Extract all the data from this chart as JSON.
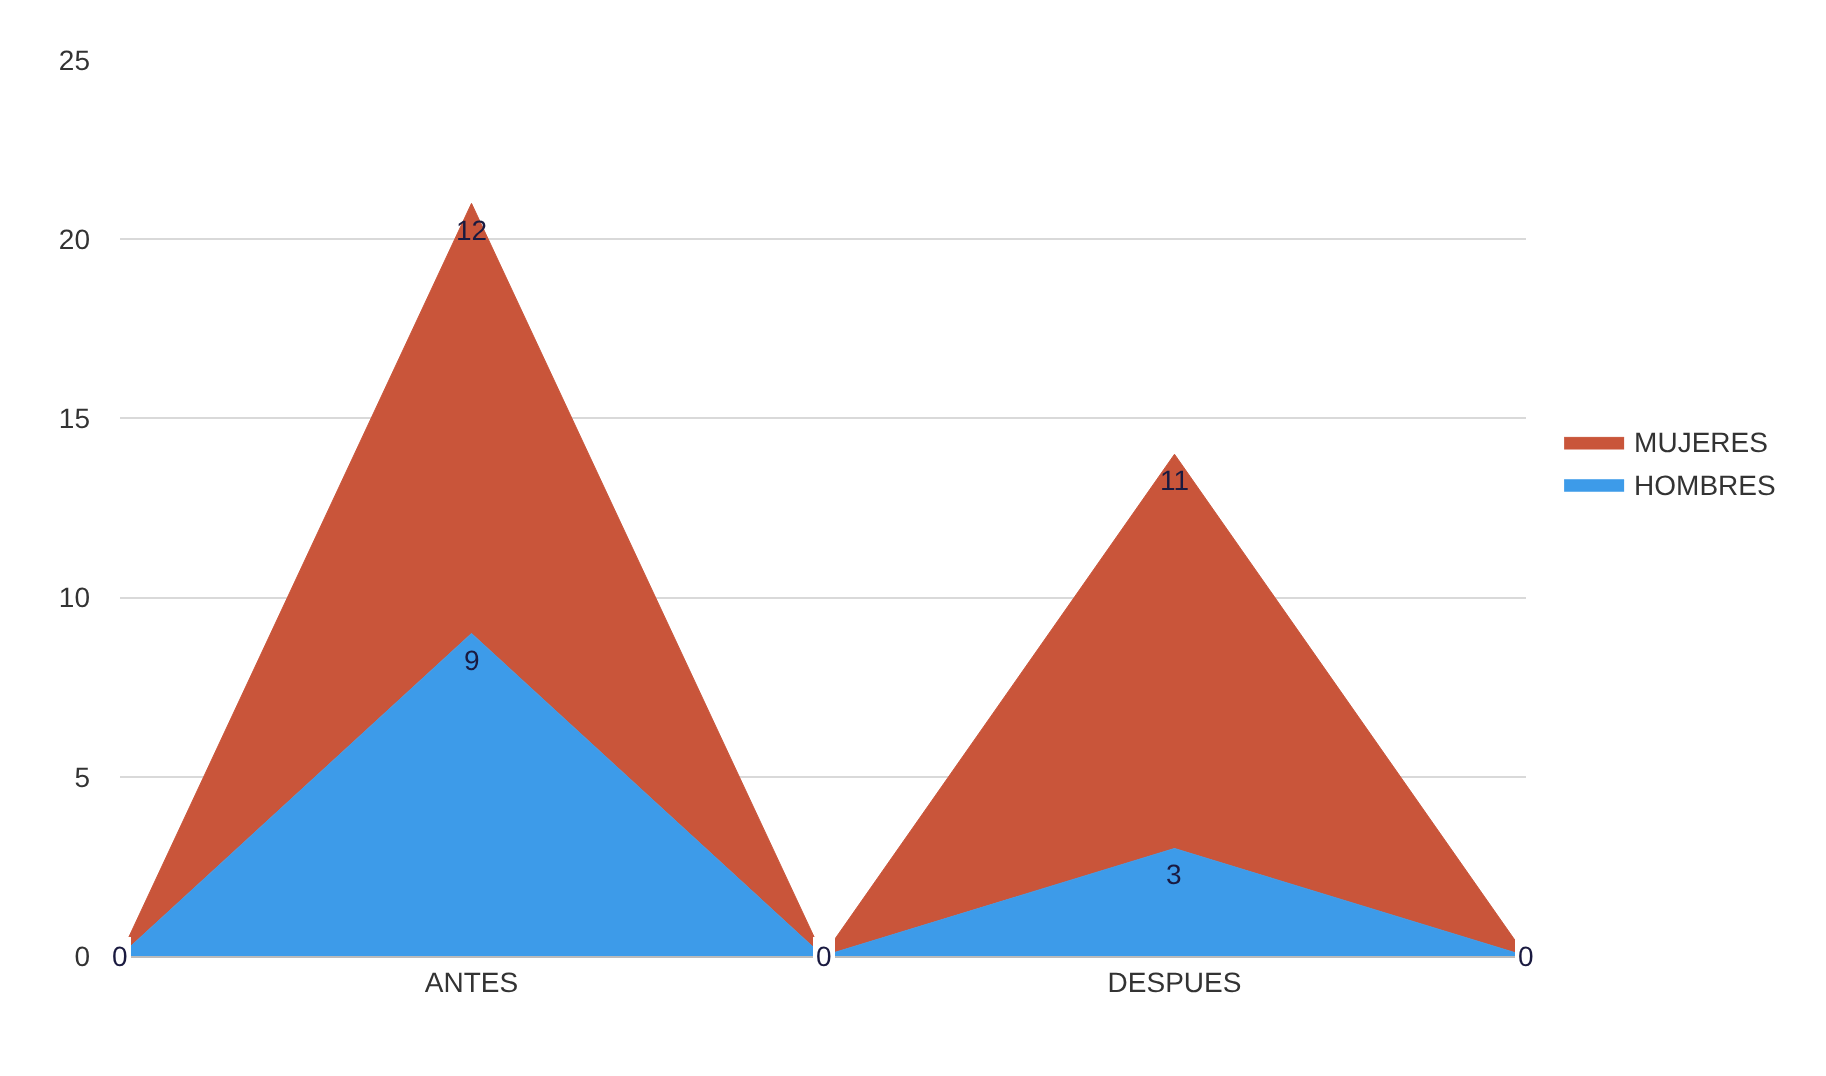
{
  "chart_data": {
    "type": "area",
    "stacked": true,
    "categories": [
      null,
      "ANTES",
      null,
      "DESPUES",
      null
    ],
    "series": [
      {
        "name": "HOMBRES",
        "color": "#3d9be9",
        "values": [
          0,
          9,
          0,
          3,
          0
        ],
        "value_labels": [
          "0",
          "9",
          "0",
          "3",
          "0"
        ]
      },
      {
        "name": "MUJERES",
        "color": "#c9553a",
        "values": [
          0,
          12,
          0,
          11,
          0
        ],
        "value_labels": [
          null,
          "12",
          null,
          "11",
          null
        ]
      }
    ],
    "ylim": [
      0,
      25
    ],
    "yticks": [
      0,
      5,
      10,
      15,
      20,
      25
    ],
    "grid": "y",
    "legend": "right"
  }
}
